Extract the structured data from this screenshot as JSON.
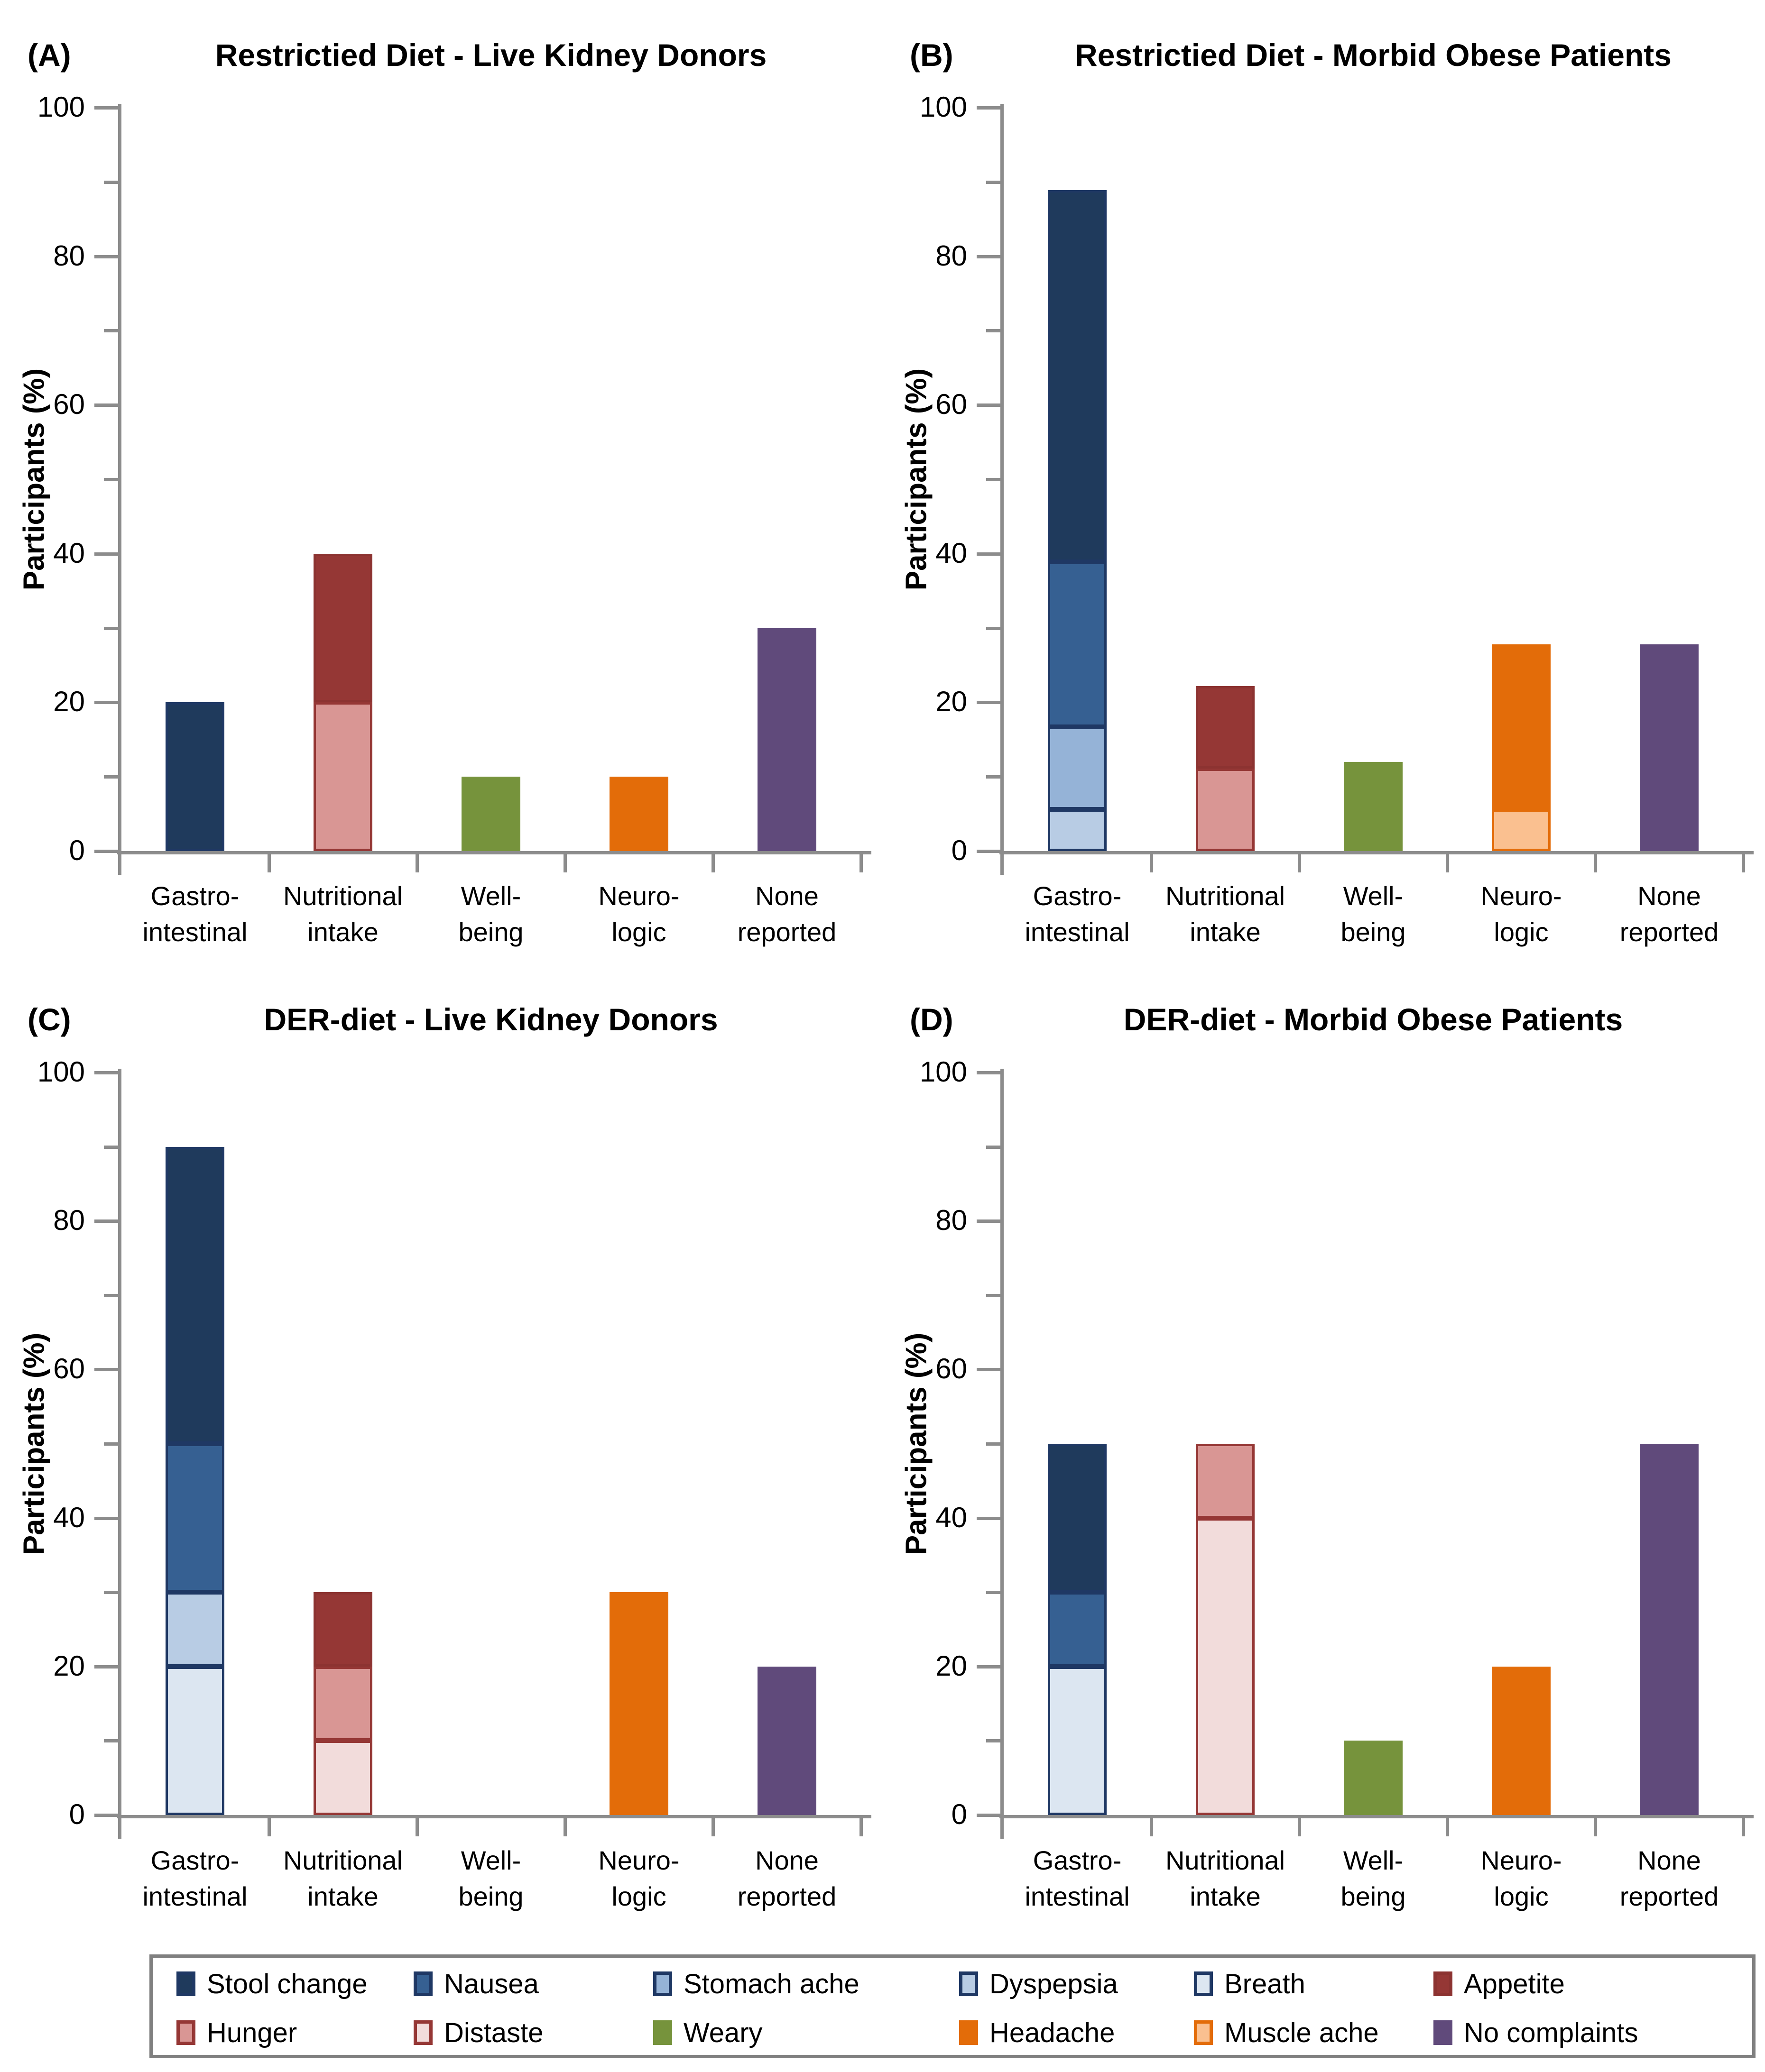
{
  "figure_type": "four-panel stacked bar figure",
  "categories_display": [
    [
      "Gastro-",
      "intestinal"
    ],
    [
      "Nutritional",
      "intake"
    ],
    [
      "Well-",
      "being"
    ],
    [
      "Neuro-",
      "logic"
    ],
    [
      "None",
      "reported"
    ]
  ],
  "legend": [
    {
      "label": "Stool change",
      "fill": "#1F3A5C",
      "border": "#1F3864"
    },
    {
      "label": "Nausea",
      "fill": "#366092",
      "border": "#1F3864"
    },
    {
      "label": "Stomach ache",
      "fill": "#95B3D7",
      "border": "#1F3864"
    },
    {
      "label": "Dyspepsia",
      "fill": "#B8CCE4",
      "border": "#1F3864"
    },
    {
      "label": "Breath",
      "fill": "#DCE6F1",
      "border": "#1F3864"
    },
    {
      "label": "Appetite",
      "fill": "#953735",
      "border": "#8C3331"
    },
    {
      "label": "Hunger",
      "fill": "#D99694",
      "border": "#953735"
    },
    {
      "label": "Distaste",
      "fill": "#F2DCDB",
      "border": "#953735"
    },
    {
      "label": "Weary",
      "fill": "#76933C",
      "border": "#76933C"
    },
    {
      "label": "Headache",
      "fill": "#E36C09",
      "border": "#E36C09"
    },
    {
      "label": "Muscle ache",
      "fill": "#FAC090",
      "border": "#E36C09"
    },
    {
      "label": "No complaints",
      "fill": "#604A7B",
      "border": "#604A7B"
    }
  ],
  "axis_color": "#8C8C8C",
  "chart_data": [
    {
      "type": "bar",
      "stacked": true,
      "panel": "A",
      "label": "(A)",
      "title": "Restrictied Diet - Live Kidney Donors",
      "xlabel": "",
      "ylabel": "Participants (%)",
      "ylim": [
        0,
        100
      ],
      "yticks": [
        0,
        20,
        40,
        60,
        80,
        100
      ],
      "minor_yticks": [
        10,
        30,
        50,
        70,
        90
      ],
      "grid": false,
      "categories": [
        "Gastro-intestinal",
        "Nutritional intake",
        "Well-being",
        "Neuro-logic",
        "None reported"
      ],
      "series": [
        {
          "name": "Stool change",
          "values": [
            20,
            0,
            0,
            0,
            0
          ]
        },
        {
          "name": "Appetite",
          "values": [
            0,
            20,
            0,
            0,
            0
          ]
        },
        {
          "name": "Hunger",
          "values": [
            0,
            20,
            0,
            0,
            0
          ]
        },
        {
          "name": "Weary",
          "values": [
            0,
            0,
            10,
            0,
            0
          ]
        },
        {
          "name": "Headache",
          "values": [
            0,
            0,
            0,
            10,
            0
          ]
        },
        {
          "name": "No complaints",
          "values": [
            0,
            0,
            0,
            0,
            30
          ]
        }
      ]
    },
    {
      "type": "bar",
      "stacked": true,
      "panel": "B",
      "label": "(B)",
      "title": "Restrictied Diet - Morbid Obese Patients",
      "xlabel": "",
      "ylabel": "Participants (%)",
      "ylim": [
        0,
        100
      ],
      "yticks": [
        0,
        20,
        40,
        60,
        80,
        100
      ],
      "minor_yticks": [
        10,
        30,
        50,
        70,
        90
      ],
      "grid": false,
      "categories": [
        "Gastro-intestinal",
        "Nutritional intake",
        "Well-being",
        "Neuro-logic",
        "None reported"
      ],
      "series": [
        {
          "name": "Stool change",
          "values": [
            50,
            0,
            0,
            0,
            0
          ]
        },
        {
          "name": "Nausea",
          "values": [
            22.2,
            0,
            0,
            0,
            0
          ]
        },
        {
          "name": "Stomach ache",
          "values": [
            11.1,
            0,
            0,
            0,
            0
          ]
        },
        {
          "name": "Dyspepsia",
          "values": [
            5.6,
            0,
            0,
            0,
            0
          ]
        },
        {
          "name": "Appetite",
          "values": [
            0,
            11.1,
            0,
            0,
            0
          ]
        },
        {
          "name": "Hunger",
          "values": [
            0,
            11.1,
            0,
            0,
            0
          ]
        },
        {
          "name": "Weary",
          "values": [
            0,
            0,
            12,
            0,
            0
          ]
        },
        {
          "name": "Headache",
          "values": [
            0,
            0,
            0,
            22.2,
            0
          ]
        },
        {
          "name": "Muscle ache",
          "values": [
            0,
            0,
            0,
            5.6,
            0
          ]
        },
        {
          "name": "No complaints",
          "values": [
            0,
            0,
            0,
            0,
            27.8
          ]
        }
      ]
    },
    {
      "type": "bar",
      "stacked": true,
      "panel": "C",
      "label": "(C)",
      "title": "DER-diet - Live Kidney Donors",
      "xlabel": "",
      "ylabel": "Participants (%)",
      "ylim": [
        0,
        100
      ],
      "yticks": [
        0,
        20,
        40,
        60,
        80,
        100
      ],
      "minor_yticks": [
        10,
        30,
        50,
        70,
        90
      ],
      "grid": false,
      "categories": [
        "Gastro-intestinal",
        "Nutritional intake",
        "Well-being",
        "Neuro-logic",
        "None reported"
      ],
      "series": [
        {
          "name": "Stool change",
          "values": [
            40,
            0,
            0,
            0,
            0
          ]
        },
        {
          "name": "Nausea",
          "values": [
            20,
            0,
            0,
            0,
            0
          ]
        },
        {
          "name": "Dyspepsia",
          "values": [
            10,
            0,
            0,
            0,
            0
          ]
        },
        {
          "name": "Breath",
          "values": [
            20,
            0,
            0,
            0,
            0
          ]
        },
        {
          "name": "Appetite",
          "values": [
            0,
            10,
            0,
            0,
            0
          ]
        },
        {
          "name": "Hunger",
          "values": [
            0,
            10,
            0,
            0,
            0
          ]
        },
        {
          "name": "Distaste",
          "values": [
            0,
            10,
            0,
            0,
            0
          ]
        },
        {
          "name": "Headache",
          "values": [
            0,
            0,
            0,
            30,
            0
          ]
        },
        {
          "name": "No complaints",
          "values": [
            0,
            0,
            0,
            0,
            20
          ]
        }
      ]
    },
    {
      "type": "bar",
      "stacked": true,
      "panel": "D",
      "label": "(D)",
      "title": "DER-diet - Morbid Obese Patients",
      "xlabel": "",
      "ylabel": "Participants (%)",
      "ylim": [
        0,
        100
      ],
      "yticks": [
        0,
        20,
        40,
        60,
        80,
        100
      ],
      "minor_yticks": [
        10,
        30,
        50,
        70,
        90
      ],
      "grid": false,
      "categories": [
        "Gastro-intestinal",
        "Nutritional intake",
        "Well-being",
        "Neuro-logic",
        "None reported"
      ],
      "series": [
        {
          "name": "Stool change",
          "values": [
            20,
            0,
            0,
            0,
            0
          ]
        },
        {
          "name": "Nausea",
          "values": [
            10,
            0,
            0,
            0,
            0
          ]
        },
        {
          "name": "Breath",
          "values": [
            20,
            0,
            0,
            0,
            0
          ]
        },
        {
          "name": "Hunger",
          "values": [
            0,
            10,
            0,
            0,
            0
          ]
        },
        {
          "name": "Distaste",
          "values": [
            0,
            40,
            0,
            0,
            0
          ]
        },
        {
          "name": "Weary",
          "values": [
            0,
            0,
            10,
            0,
            0
          ]
        },
        {
          "name": "Headache",
          "values": [
            0,
            0,
            0,
            20,
            0
          ]
        },
        {
          "name": "No complaints",
          "values": [
            0,
            0,
            0,
            0,
            50
          ]
        }
      ]
    }
  ]
}
